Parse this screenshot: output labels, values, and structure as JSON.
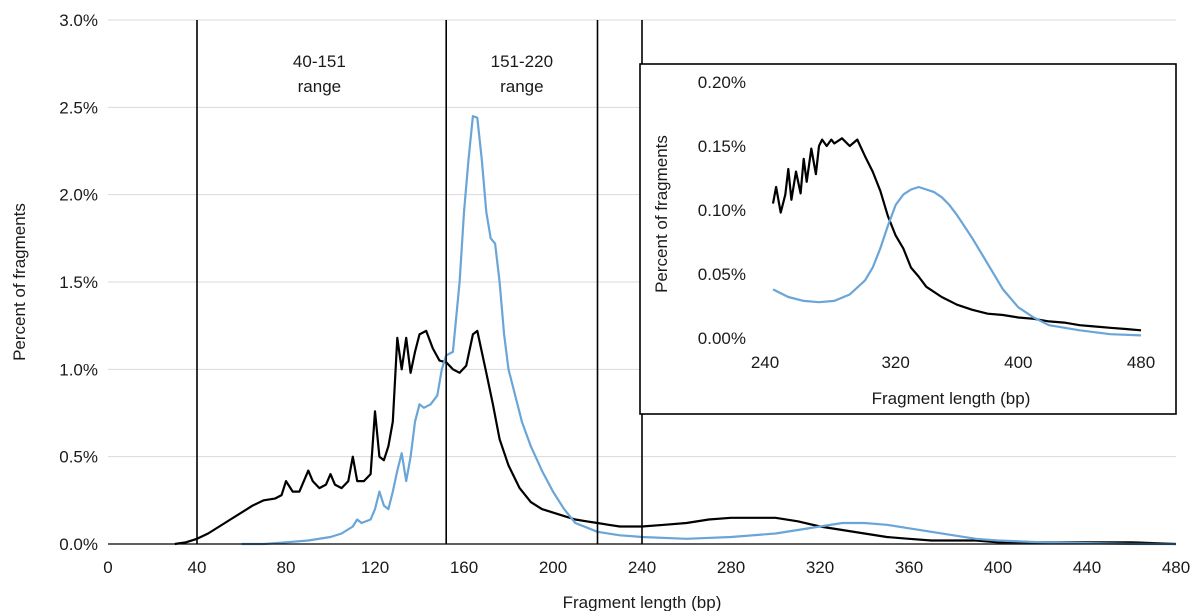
{
  "chart_data": [
    {
      "type": "line",
      "title": "",
      "xlabel": "Fragment length (bp)",
      "ylabel": "Percent of fragments",
      "xlim": [
        0,
        480
      ],
      "ylim": [
        0,
        3.0
      ],
      "xticks": [
        "0",
        "40",
        "80",
        "120",
        "160",
        "200",
        "240",
        "280",
        "320",
        "360",
        "400",
        "440",
        "480"
      ],
      "yticks": [
        "0.0%",
        "0.5%",
        "1.0%",
        "1.5%",
        "2.0%",
        "2.5%",
        "3.0%"
      ],
      "grid": "horizontal",
      "vlines": [
        40,
        152,
        220,
        240
      ],
      "annotations": [
        {
          "line1": "40-151",
          "line2": "range",
          "x": 95
        },
        {
          "line1": "151-220",
          "line2": "range",
          "x": 186
        }
      ],
      "series": [
        {
          "color": "#000000",
          "x": [
            30,
            35,
            40,
            45,
            50,
            55,
            60,
            65,
            70,
            75,
            78,
            80,
            83,
            86,
            90,
            92,
            95,
            98,
            100,
            102,
            105,
            108,
            110,
            112,
            115,
            118,
            120,
            122,
            124,
            126,
            128,
            130,
            132,
            134,
            136,
            138,
            140,
            143,
            146,
            149,
            152,
            155,
            158,
            161,
            164,
            166,
            168,
            170,
            173,
            176,
            180,
            185,
            190,
            195,
            200,
            205,
            210,
            215,
            220,
            225,
            230,
            240,
            250,
            260,
            270,
            280,
            290,
            300,
            310,
            320,
            330,
            340,
            350,
            360,
            370,
            380,
            390,
            400,
            420,
            440,
            460,
            480
          ],
          "y": [
            0,
            0.01,
            0.03,
            0.06,
            0.1,
            0.14,
            0.18,
            0.22,
            0.25,
            0.26,
            0.28,
            0.36,
            0.3,
            0.3,
            0.42,
            0.36,
            0.32,
            0.34,
            0.4,
            0.34,
            0.32,
            0.36,
            0.5,
            0.36,
            0.36,
            0.4,
            0.76,
            0.5,
            0.48,
            0.56,
            0.7,
            1.18,
            1.0,
            1.18,
            0.98,
            1.1,
            1.2,
            1.22,
            1.12,
            1.05,
            1.04,
            1.0,
            0.98,
            1.02,
            1.2,
            1.22,
            1.1,
            0.98,
            0.8,
            0.6,
            0.45,
            0.32,
            0.24,
            0.2,
            0.18,
            0.16,
            0.14,
            0.13,
            0.12,
            0.11,
            0.1,
            0.1,
            0.11,
            0.12,
            0.14,
            0.15,
            0.15,
            0.15,
            0.13,
            0.1,
            0.08,
            0.06,
            0.04,
            0.03,
            0.02,
            0.02,
            0.02,
            0.01,
            0.01,
            0.01,
            0.01,
            0
          ]
        },
        {
          "color": "#6aa5d8",
          "x": [
            60,
            70,
            80,
            90,
            100,
            105,
            110,
            112,
            114,
            118,
            120,
            122,
            124,
            126,
            128,
            130,
            132,
            134,
            136,
            138,
            140,
            142,
            145,
            148,
            150,
            152,
            155,
            158,
            160,
            162,
            164,
            166,
            168,
            170,
            172,
            174,
            176,
            178,
            180,
            183,
            186,
            190,
            195,
            200,
            205,
            210,
            220,
            230,
            240,
            260,
            280,
            300,
            320,
            330,
            340,
            350,
            360,
            370,
            380,
            390,
            400,
            420,
            440,
            460,
            480
          ],
          "y": [
            0,
            0,
            0.01,
            0.02,
            0.04,
            0.06,
            0.1,
            0.14,
            0.12,
            0.14,
            0.2,
            0.3,
            0.22,
            0.2,
            0.3,
            0.42,
            0.52,
            0.36,
            0.5,
            0.7,
            0.8,
            0.78,
            0.8,
            0.85,
            1.0,
            1.08,
            1.1,
            1.5,
            1.9,
            2.2,
            2.45,
            2.44,
            2.2,
            1.9,
            1.75,
            1.72,
            1.5,
            1.2,
            1.0,
            0.85,
            0.7,
            0.56,
            0.42,
            0.3,
            0.2,
            0.12,
            0.07,
            0.05,
            0.04,
            0.03,
            0.04,
            0.06,
            0.1,
            0.12,
            0.12,
            0.11,
            0.09,
            0.07,
            0.05,
            0.03,
            0.02,
            0.01,
            0.005,
            0,
            0
          ]
        }
      ]
    },
    {
      "type": "line",
      "title": "",
      "xlabel": "Fragment length (bp)",
      "ylabel": "Percent of fragments",
      "xlim": [
        240,
        480
      ],
      "ylim": [
        0,
        0.2
      ],
      "xticks": [
        "240",
        "320",
        "400",
        "480"
      ],
      "yticks": [
        "0.00%",
        "0.05%",
        "0.10%",
        "0.15%",
        "0.20%"
      ],
      "grid": "none",
      "series": [
        {
          "color": "#000000",
          "x": [
            240,
            242,
            245,
            248,
            250,
            252,
            255,
            258,
            260,
            262,
            265,
            268,
            270,
            272,
            275,
            278,
            280,
            285,
            290,
            295,
            300,
            305,
            310,
            315,
            320,
            325,
            330,
            335,
            340,
            350,
            360,
            370,
            380,
            390,
            400,
            410,
            420,
            430,
            440,
            450,
            460,
            470,
            480
          ],
          "y": [
            0.105,
            0.118,
            0.098,
            0.112,
            0.132,
            0.108,
            0.13,
            0.113,
            0.14,
            0.122,
            0.148,
            0.128,
            0.15,
            0.155,
            0.15,
            0.155,
            0.152,
            0.156,
            0.15,
            0.155,
            0.142,
            0.13,
            0.115,
            0.095,
            0.08,
            0.07,
            0.055,
            0.048,
            0.04,
            0.032,
            0.026,
            0.022,
            0.019,
            0.018,
            0.016,
            0.015,
            0.013,
            0.012,
            0.01,
            0.009,
            0.008,
            0.007,
            0.006
          ]
        },
        {
          "color": "#6aa5d8",
          "x": [
            240,
            250,
            260,
            270,
            280,
            290,
            300,
            305,
            310,
            315,
            320,
            325,
            330,
            335,
            340,
            345,
            350,
            355,
            360,
            370,
            380,
            390,
            400,
            410,
            420,
            440,
            460,
            480
          ],
          "y": [
            0.038,
            0.032,
            0.029,
            0.028,
            0.029,
            0.034,
            0.045,
            0.055,
            0.07,
            0.088,
            0.104,
            0.112,
            0.116,
            0.118,
            0.116,
            0.114,
            0.11,
            0.104,
            0.096,
            0.078,
            0.058,
            0.038,
            0.024,
            0.016,
            0.01,
            0.006,
            0.003,
            0.002
          ]
        }
      ]
    }
  ]
}
